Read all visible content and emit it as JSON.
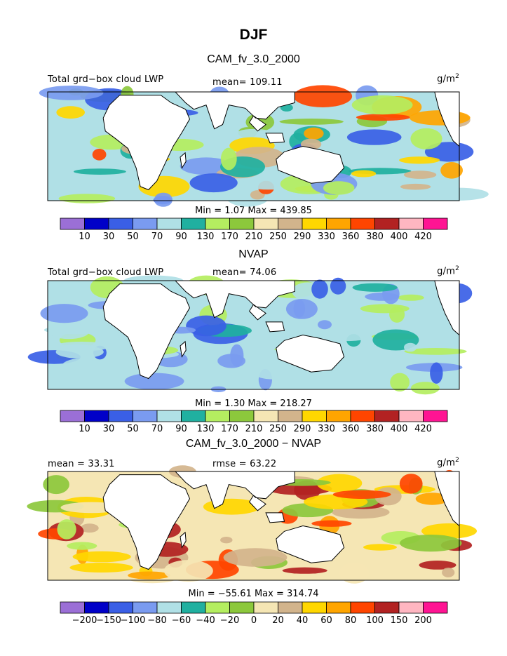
{
  "chart_data": [
    {
      "type": "heatmap",
      "title": "DJF",
      "subtitle": "CAM_fv_3.0_2000",
      "left_label": "Total grd−box cloud LWP",
      "center_label": "mean=  109.11",
      "units_base": "g/m",
      "units_exp": "2",
      "min_max": "Min =     1.07 Max = 439.85",
      "colorbar_labels": [
        "10",
        "30",
        "50",
        "70",
        "90",
        "130",
        "170",
        "210",
        "250",
        "290",
        "330",
        "360",
        "380",
        "400",
        "420"
      ],
      "colorbar_colors": [
        "#9b6fd6",
        "#0000c8",
        "#3a5fe6",
        "#7a9bf0",
        "#b0e0e6",
        "#20b0a0",
        "#b4ee60",
        "#8cc83c",
        "#f5e6b4",
        "#d2b48c",
        "#ffd700",
        "#ffa500",
        "#ff4500",
        "#b22222",
        "#ffb6c1",
        "#ff1493"
      ],
      "map_palette": [
        "#3a5fe6",
        "#7a9bf0",
        "#b0e0e6",
        "#20b0a0",
        "#b4ee60",
        "#8cc83c",
        "#d2b48c",
        "#ffd700",
        "#ffa500",
        "#ff4500"
      ],
      "map_base_color": "#b0e0e6",
      "seed": 11
    },
    {
      "type": "heatmap",
      "subtitle": "NVAP",
      "left_label": "Total grd−box cloud LWP",
      "center_label": "mean=   74.06",
      "units_base": "g/m",
      "units_exp": "2",
      "min_max": "Min =     1.30 Max = 218.27",
      "colorbar_labels": [
        "10",
        "30",
        "50",
        "70",
        "90",
        "130",
        "170",
        "210",
        "250",
        "290",
        "330",
        "360",
        "380",
        "400",
        "420"
      ],
      "colorbar_colors": [
        "#9b6fd6",
        "#0000c8",
        "#3a5fe6",
        "#7a9bf0",
        "#b0e0e6",
        "#20b0a0",
        "#b4ee60",
        "#8cc83c",
        "#f5e6b4",
        "#d2b48c",
        "#ffd700",
        "#ffa500",
        "#ff4500",
        "#b22222",
        "#ffb6c1",
        "#ff1493"
      ],
      "map_palette": [
        "#b0e0e6",
        "#b0e0e6",
        "#20b0a0",
        "#7a9bf0",
        "#3a5fe6",
        "#b4ee60"
      ],
      "map_base_color": "#b0e0e6",
      "seed": 23
    },
    {
      "type": "heatmap",
      "subtitle": "CAM_fv_3.0_2000 − NVAP",
      "left_label": "mean =    33.31",
      "center_label": "rmse =    63.22",
      "units_base": "g/m",
      "units_exp": "2",
      "min_max": "Min = −55.61 Max = 314.74",
      "colorbar_labels": [
        "−200",
        "−150",
        "−100",
        "−80",
        "−60",
        "−40",
        "−20",
        "0",
        "20",
        "40",
        "60",
        "80",
        "100",
        "150",
        "200"
      ],
      "colorbar_colors": [
        "#9b6fd6",
        "#0000c8",
        "#3a5fe6",
        "#7a9bf0",
        "#b0e0e6",
        "#20b0a0",
        "#b4ee60",
        "#8cc83c",
        "#f5e6b4",
        "#d2b48c",
        "#ffd700",
        "#ffa500",
        "#ff4500",
        "#b22222",
        "#ffb6c1",
        "#ff1493"
      ],
      "map_palette": [
        "#b4ee60",
        "#8cc83c",
        "#f5e6b4",
        "#d2b48c",
        "#ffd700",
        "#ffa500",
        "#ff4500",
        "#b22222"
      ],
      "map_base_color": "#f5e6b4",
      "seed": 37
    }
  ]
}
